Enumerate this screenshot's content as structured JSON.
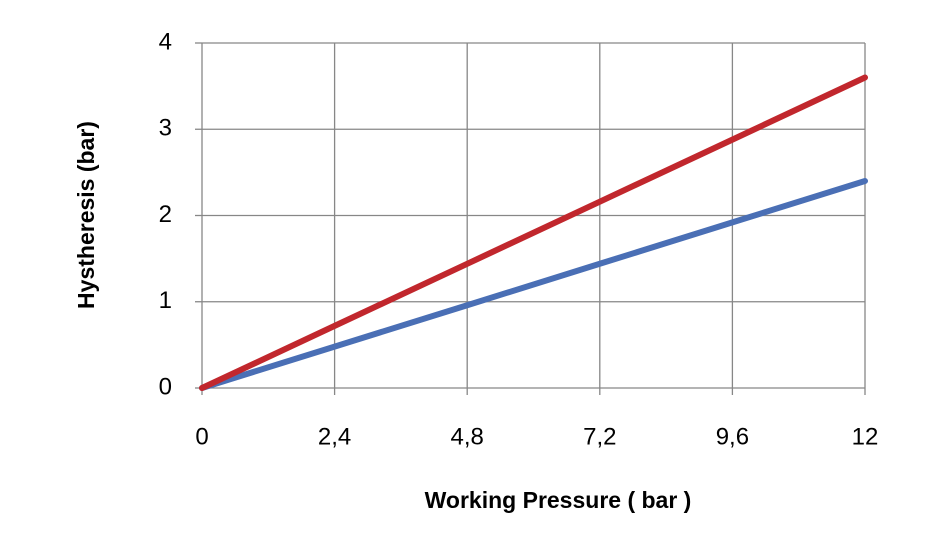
{
  "chart_data": {
    "type": "line",
    "x_label": "Working Pressure ( bar )",
    "y_label": "Hystheresis (bar)",
    "x": [
      0,
      2.4,
      4.8,
      7.2,
      9.6,
      12
    ],
    "series": [
      {
        "color": "#4a6fb5",
        "values": [
          0,
          0.48,
          0.96,
          1.44,
          1.92,
          2.4
        ]
      },
      {
        "color": "#c1272d",
        "values": [
          0,
          0.72,
          1.44,
          2.16,
          2.88,
          3.6
        ]
      }
    ],
    "xlim": [
      0,
      12
    ],
    "xticks": [
      0,
      {
        "value": 2.4,
        "label": "2,4"
      },
      {
        "value": 4.8,
        "label": "4,8"
      },
      {
        "value": 7.2,
        "label": "7,2"
      },
      {
        "value": 9.6,
        "label": "9,6"
      },
      12
    ],
    "ylim": [
      0,
      4
    ],
    "yticks": [
      0,
      1,
      2,
      3,
      4
    ],
    "grid": true
  }
}
